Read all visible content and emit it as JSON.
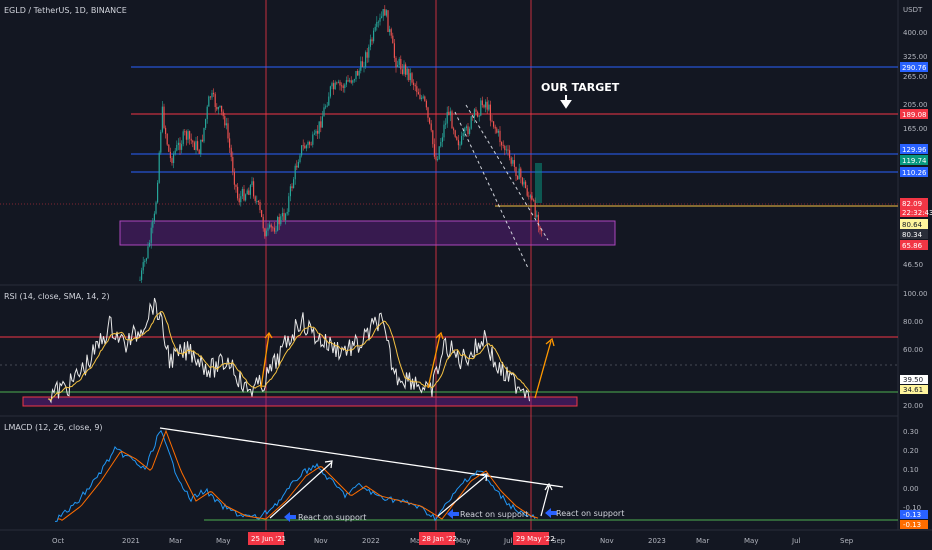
{
  "header": {
    "pair": "EGLD / TetherUS, 1D, BINANCE",
    "currency": "USDT"
  },
  "annotation": {
    "target_text": "OUR TARGET",
    "support_text": "React on support"
  },
  "rsi": {
    "title": "RSI (14, close, SMA, 14, 2)",
    "ticks": [
      "100.00",
      "80.00",
      "60.00",
      "40.00",
      "20.00"
    ],
    "last_values": [
      "39.50",
      "34.61"
    ]
  },
  "macd": {
    "title": "LMACD (12, 26, close, 9)",
    "ticks": [
      "0.30",
      "0.20",
      "0.10",
      "0.00",
      "-0.10"
    ],
    "last_values": [
      "-0.13",
      "-0.13"
    ]
  },
  "price_axis": {
    "ticks": [
      "400.00",
      "325.00",
      "265.00",
      "205.00",
      "165.00",
      "46.50"
    ],
    "levels": [
      {
        "value": "290.76",
        "color": "#2962ff"
      },
      {
        "value": "189.08",
        "color": "#f23645"
      },
      {
        "value": "129.96",
        "color": "#2962ff"
      },
      {
        "value": "119.74",
        "color": "#089981"
      },
      {
        "value": "110.26",
        "color": "#2962ff"
      },
      {
        "value": "82.09",
        "color": "#f23645"
      },
      {
        "value": "22:32:43",
        "color": "#f23645"
      },
      {
        "value": "80.64",
        "color": "#fff59d"
      },
      {
        "value": "80.34",
        "color": "#2a2e39"
      },
      {
        "value": "65.86",
        "color": "#f23645"
      }
    ]
  },
  "time_axis": {
    "labels": [
      "Oct",
      "2021",
      "Mar",
      "May",
      "Sep",
      "Nov",
      "2022",
      "Mar",
      "May",
      "Jul",
      "Sep",
      "Nov",
      "2023",
      "Mar",
      "May",
      "Jul",
      "Sep"
    ],
    "markers": [
      "25 Jun '21",
      "28 Jan '22",
      "29 May '22"
    ]
  },
  "chart_data": {
    "type": "line",
    "title": "EGLD / TetherUS, 1D, BINANCE",
    "xlabel": "",
    "ylabel": "",
    "x": [
      "Oct",
      "2021",
      "Mar",
      "May",
      "Jul",
      "Sep",
      "Nov",
      "2022",
      "Mar",
      "May",
      "Jul"
    ],
    "series": [
      {
        "name": "",
        "values": [
          50,
          60,
          160,
          200,
          90,
          170,
          380,
          300,
          170,
          80,
          80
        ]
      }
    ],
    "horizontal_levels": [
      290.76,
      189.08,
      129.96,
      110.26,
      82.09
    ],
    "support_zone": [
      60,
      75
    ],
    "log_scale": true
  },
  "colors": {
    "bg": "#131722",
    "blue": "#2962ff",
    "red": "#f23645",
    "green": "#4caf50",
    "purple": "#7b1fa2",
    "orange": "#ff9800"
  }
}
